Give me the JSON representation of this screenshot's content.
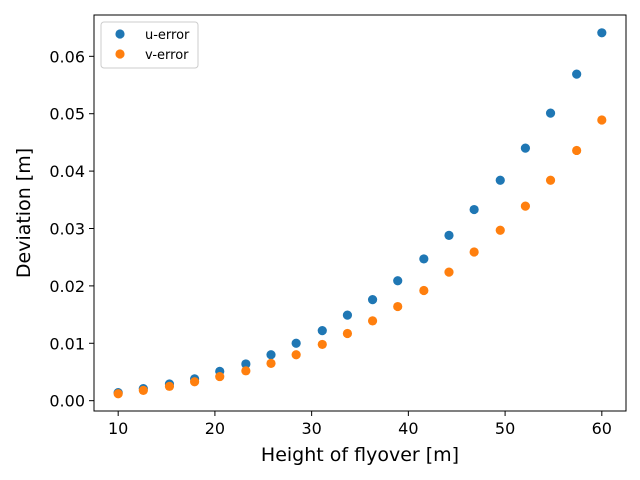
{
  "chart_data": {
    "type": "scatter",
    "title": "",
    "xlabel": "Height of flyover [m]",
    "ylabel": "Deviation [m]",
    "xlim": [
      7.5,
      62.5
    ],
    "ylim": [
      -0.0018,
      0.0672
    ],
    "xticks": [
      10,
      20,
      30,
      40,
      50,
      60
    ],
    "xtick_labels": [
      "10",
      "20",
      "30",
      "40",
      "50",
      "60"
    ],
    "yticks": [
      0.0,
      0.01,
      0.02,
      0.03,
      0.04,
      0.05,
      0.06
    ],
    "ytick_labels": [
      "0.00",
      "0.01",
      "0.02",
      "0.03",
      "0.04",
      "0.05",
      "0.06"
    ],
    "grid": false,
    "legend_position": "top-left",
    "x": [
      10.0,
      12.6,
      15.3,
      17.9,
      20.5,
      23.2,
      25.8,
      28.4,
      31.1,
      33.7,
      36.3,
      38.9,
      41.6,
      44.2,
      46.8,
      49.5,
      52.1,
      54.7,
      57.4,
      60.0
    ],
    "series": [
      {
        "name": "u-error",
        "color": "#1f77b4",
        "values": [
          0.0014,
          0.0021,
          0.0029,
          0.0038,
          0.0051,
          0.0064,
          0.008,
          0.01,
          0.0122,
          0.0149,
          0.0176,
          0.0209,
          0.0247,
          0.0288,
          0.0333,
          0.0384,
          0.044,
          0.0501,
          0.0569,
          0.0641
        ]
      },
      {
        "name": "v-error",
        "color": "#ff7f0e",
        "values": [
          0.0012,
          0.0018,
          0.0025,
          0.0033,
          0.0042,
          0.0052,
          0.0065,
          0.008,
          0.0098,
          0.0117,
          0.0139,
          0.0164,
          0.0192,
          0.0224,
          0.0259,
          0.0297,
          0.0339,
          0.0384,
          0.0436,
          0.0489
        ]
      }
    ]
  }
}
